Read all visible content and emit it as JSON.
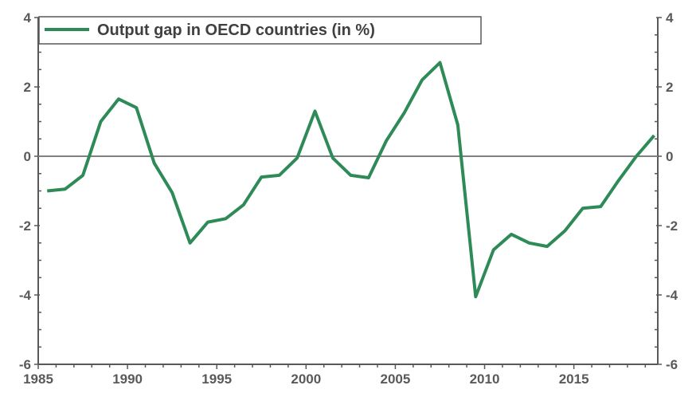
{
  "chart_data": {
    "type": "line",
    "title": "",
    "xlabel": "",
    "ylabel": "",
    "xlim": [
      1985,
      2019.7
    ],
    "ylim": [
      -6,
      4
    ],
    "x_ticks": [
      1985,
      1990,
      1995,
      2000,
      2005,
      2010,
      2015
    ],
    "x_tick_labels": [
      "1985",
      "1990",
      "1995",
      "2000",
      "2005",
      "2010",
      "2015"
    ],
    "y_ticks": [
      -6,
      -4,
      -2,
      0,
      2,
      4
    ],
    "y_tick_labels": [
      "-6",
      "-4",
      "-2",
      "0",
      "2",
      "4"
    ],
    "y_axis_right_mirror": true,
    "zero_line": true,
    "grid": false,
    "legend_position": "top-left",
    "series": [
      {
        "name": "Output gap in OECD countries (in %)",
        "color": "#2e8b57",
        "x": [
          1985.5,
          1986.5,
          1987.5,
          1988.5,
          1989.5,
          1990.5,
          1991.5,
          1992.5,
          1993.5,
          1994.5,
          1995.5,
          1996.5,
          1997.5,
          1998.5,
          1999.5,
          2000.5,
          2001.5,
          2002.5,
          2003.5,
          2004.5,
          2005.5,
          2006.5,
          2007.5,
          2008.5,
          2009.5,
          2010.5,
          2011.5,
          2012.5,
          2013.5,
          2014.5,
          2015.5,
          2016.5,
          2017.5,
          2018.5,
          2019.5
        ],
        "values": [
          -1.0,
          -0.95,
          -0.55,
          1.0,
          1.65,
          1.4,
          -0.2,
          -1.05,
          -2.5,
          -1.9,
          -1.8,
          -1.4,
          -0.6,
          -0.55,
          -0.05,
          1.3,
          -0.05,
          -0.55,
          -0.62,
          0.45,
          1.25,
          2.2,
          2.7,
          0.9,
          -4.05,
          -2.7,
          -2.25,
          -2.5,
          -2.6,
          -2.15,
          -1.5,
          -1.45,
          -0.7,
          0.0,
          0.6
        ]
      }
    ]
  },
  "legend": {
    "label": "Output gap in OECD countries (in %)"
  },
  "colors": {
    "line": "#2e8b57",
    "axis": "#595959",
    "zero_line": "#808080"
  }
}
